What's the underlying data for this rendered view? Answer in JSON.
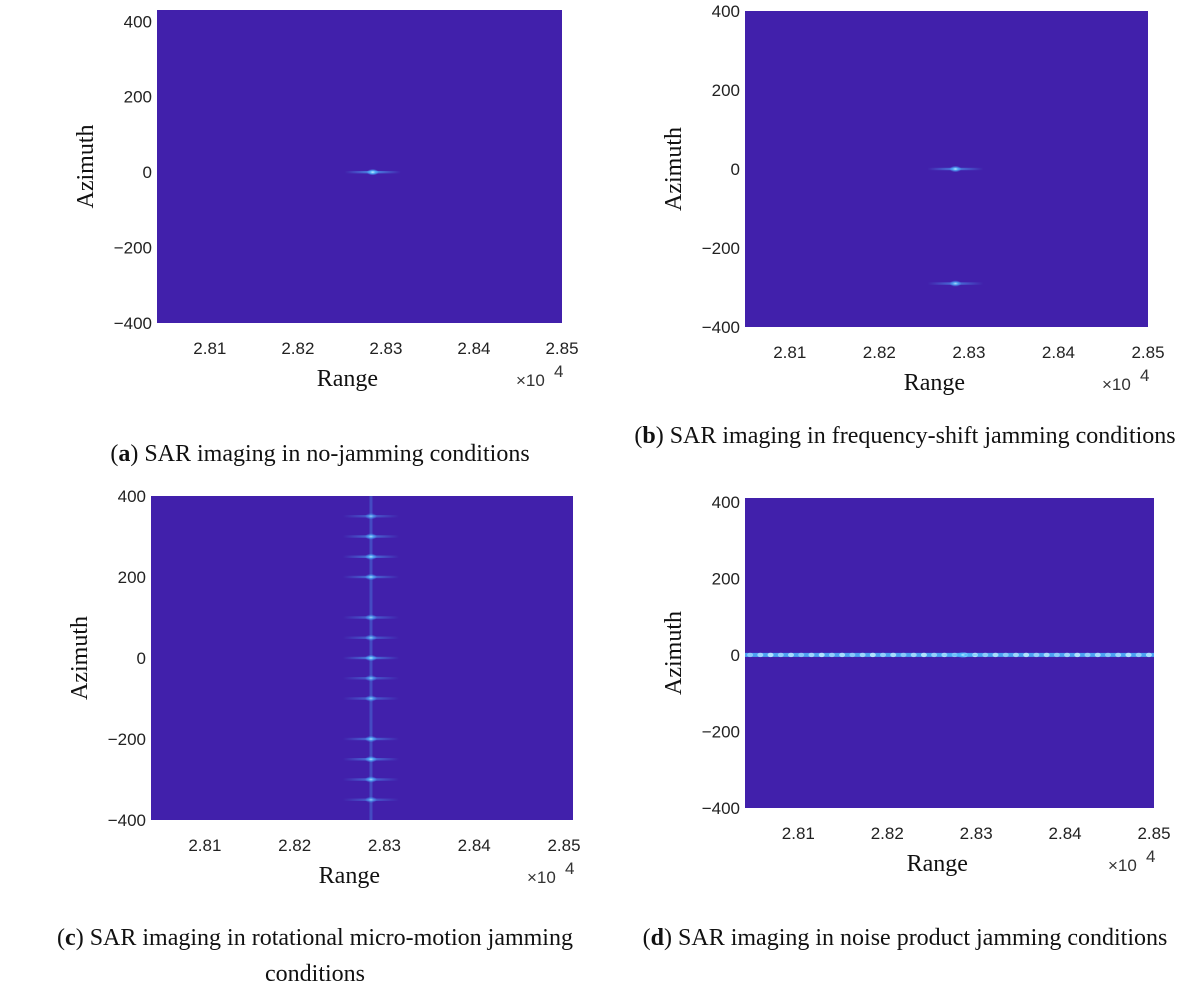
{
  "colors": {
    "background": "#4120AB",
    "glint": "#4fb8ff",
    "glint_core": "#c8f0ff"
  },
  "chart_data": [
    {
      "type": "heatmap",
      "letter": "a",
      "caption": "SAR imaging in no-jamming conditions",
      "xlabel": "Range",
      "ylabel": "Azimuth",
      "x_multiplier": "×10",
      "x_multiplier_exp": "4",
      "xlim": [
        2.804,
        2.85
      ],
      "ylim": [
        -400,
        430
      ],
      "xticks": [
        "2.81",
        "2.82",
        "2.83",
        "2.84",
        "2.85"
      ],
      "xtick_values": [
        2.81,
        2.82,
        2.83,
        2.84,
        2.85
      ],
      "yticks": [
        "400",
        "200",
        "0",
        "−200",
        "−400"
      ],
      "ytick_values": [
        400,
        200,
        0,
        -200,
        -400
      ],
      "points": [
        {
          "x": 2.8285,
          "y": 0,
          "intensity": 1.0
        }
      ],
      "noise_line": null
    },
    {
      "type": "heatmap",
      "letter": "b",
      "caption": "SAR imaging in frequency-shift jamming conditions",
      "xlabel": "Range",
      "ylabel": "Azimuth",
      "x_multiplier": "×10",
      "x_multiplier_exp": "4",
      "xlim": [
        2.805,
        2.85
      ],
      "ylim": [
        -400,
        400
      ],
      "xticks": [
        "2.81",
        "2.82",
        "2.83",
        "2.84",
        "2.85"
      ],
      "xtick_values": [
        2.81,
        2.82,
        2.83,
        2.84,
        2.85
      ],
      "yticks": [
        "400",
        "200",
        "0",
        "−200",
        "−400"
      ],
      "ytick_values": [
        400,
        200,
        0,
        -200,
        -400
      ],
      "points": [
        {
          "x": 2.8285,
          "y": 0,
          "intensity": 0.9
        },
        {
          "x": 2.8285,
          "y": -290,
          "intensity": 0.8
        }
      ],
      "noise_line": null
    },
    {
      "type": "heatmap",
      "letter": "c",
      "caption": "SAR imaging in rotational micro-motion jamming conditions",
      "xlabel": "Range",
      "ylabel": "Azimuth",
      "x_multiplier": "×10",
      "x_multiplier_exp": "4",
      "xlim": [
        2.804,
        2.851
      ],
      "ylim": [
        -400,
        400
      ],
      "xticks": [
        "2.81",
        "2.82",
        "2.83",
        "2.84",
        "2.85"
      ],
      "xtick_values": [
        2.81,
        2.82,
        2.83,
        2.84,
        2.85
      ],
      "yticks": [
        "400",
        "200",
        "0",
        "−200",
        "−400"
      ],
      "ytick_values": [
        400,
        200,
        0,
        -200,
        -400
      ],
      "points": [
        {
          "x": 2.8285,
          "y": 350,
          "intensity": 0.6
        },
        {
          "x": 2.8285,
          "y": 300,
          "intensity": 0.75
        },
        {
          "x": 2.8285,
          "y": 250,
          "intensity": 0.8
        },
        {
          "x": 2.8285,
          "y": 200,
          "intensity": 0.75
        },
        {
          "x": 2.8285,
          "y": 100,
          "intensity": 0.65
        },
        {
          "x": 2.8285,
          "y": 50,
          "intensity": 0.6
        },
        {
          "x": 2.8285,
          "y": 0,
          "intensity": 0.85
        },
        {
          "x": 2.8285,
          "y": -50,
          "intensity": 0.6
        },
        {
          "x": 2.8285,
          "y": -100,
          "intensity": 0.65
        },
        {
          "x": 2.8285,
          "y": -200,
          "intensity": 0.75
        },
        {
          "x": 2.8285,
          "y": -250,
          "intensity": 0.8
        },
        {
          "x": 2.8285,
          "y": -300,
          "intensity": 0.75
        },
        {
          "x": 2.8285,
          "y": -350,
          "intensity": 0.6
        }
      ],
      "vertical_streak_x": 2.8285,
      "noise_line": null
    },
    {
      "type": "heatmap",
      "letter": "d",
      "caption": "SAR imaging in noise product jamming conditions",
      "xlabel": "Range",
      "ylabel": "Azimuth",
      "x_multiplier": "×10",
      "x_multiplier_exp": "4",
      "xlim": [
        2.804,
        2.85
      ],
      "ylim": [
        -400,
        410
      ],
      "xticks": [
        "2.81",
        "2.82",
        "2.83",
        "2.84",
        "2.85"
      ],
      "xtick_values": [
        2.81,
        2.82,
        2.83,
        2.84,
        2.85
      ],
      "yticks": [
        "400",
        "200",
        "0",
        "−200",
        "−400"
      ],
      "ytick_values": [
        400,
        200,
        0,
        -200,
        -400
      ],
      "points": [
        {
          "x": 2.8285,
          "y": 0,
          "intensity": 0.9
        }
      ],
      "noise_line": {
        "y": 0,
        "x_from": 2.804,
        "x_to": 2.85
      }
    }
  ]
}
